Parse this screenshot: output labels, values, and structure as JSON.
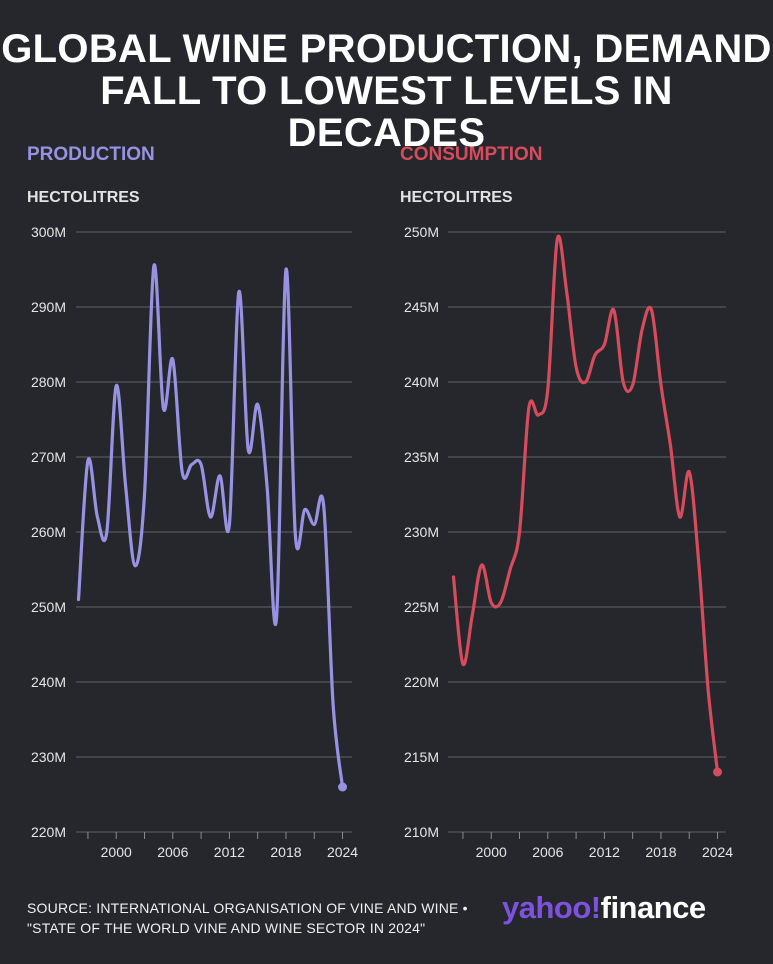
{
  "title": {
    "line1": "GLOBAL WINE PRODUCTION, DEMAND",
    "line2": "FALL TO LOWEST LEVELS IN DECADES"
  },
  "colors": {
    "background": "#25272c",
    "production": "#9793e2",
    "consumption": "#d64c5c",
    "grid": "#55575c"
  },
  "chart_data": [
    {
      "type": "line",
      "title": "PRODUCTION",
      "ylabel": "HECTOLITRES",
      "ylim": [
        220,
        300
      ],
      "yticks": [
        "220M",
        "230M",
        "240M",
        "250M",
        "260M",
        "270M",
        "280M",
        "290M",
        "300M"
      ],
      "xticks": [
        "2000",
        "2006",
        "2012",
        "2018",
        "2024"
      ],
      "xlim": [
        1996,
        2025
      ],
      "grid": "horizontal",
      "series": [
        {
          "unit": "million hectolitres",
          "x": [
            1996,
            1997,
            1998,
            1999,
            2000,
            2001,
            2002,
            2003,
            2004,
            2005,
            2006,
            2007,
            2008,
            2009,
            2010,
            2011,
            2012,
            2013,
            2014,
            2015,
            2016,
            2017,
            2018,
            2019,
            2020,
            2021,
            2022,
            2023,
            2024
          ],
          "values": [
            251,
            269.5,
            262,
            260,
            279.5,
            266,
            255.5,
            265,
            295.5,
            276.5,
            283,
            268,
            269,
            269,
            262,
            267.5,
            261,
            292,
            271,
            277,
            266,
            248.5,
            295,
            259.5,
            263,
            261,
            263.5,
            237,
            226
          ]
        }
      ]
    },
    {
      "type": "line",
      "title": "CONSUMPTION",
      "ylabel": "HECTOLITRES",
      "ylim": [
        210,
        250
      ],
      "yticks": [
        "210M",
        "215M",
        "220M",
        "225M",
        "230M",
        "235M",
        "240M",
        "245M",
        "250M"
      ],
      "xticks": [
        "2000",
        "2006",
        "2012",
        "2018",
        "2024"
      ],
      "xlim": [
        1996,
        2025
      ],
      "grid": "horizontal",
      "series": [
        {
          "unit": "million hectolitres",
          "x": [
            1996,
            1997,
            1998,
            1999,
            2000,
            2001,
            2002,
            2003,
            2004,
            2005,
            2006,
            2007,
            2008,
            2009,
            2010,
            2011,
            2012,
            2013,
            2014,
            2015,
            2016,
            2017,
            2018,
            2019,
            2020,
            2021,
            2022,
            2023,
            2024
          ],
          "values": [
            227,
            221.2,
            224.5,
            227.8,
            225.3,
            225.3,
            227.5,
            230,
            238.3,
            237.8,
            239.5,
            249.5,
            246,
            241,
            240,
            241.8,
            242.5,
            244.8,
            240,
            239.8,
            243.5,
            244.8,
            239.8,
            235.8,
            231,
            234,
            228,
            219.5,
            214
          ]
        }
      ]
    }
  ],
  "source": {
    "line1": "SOURCE: INTERNATIONAL ORGANISATION OF VINE AND WINE •",
    "line2": "\"STATE OF THE WORLD VINE AND WINE SECTOR IN 2024\""
  },
  "logo": {
    "part1": "yahoo",
    "part2": "!",
    "part3": "finance"
  }
}
